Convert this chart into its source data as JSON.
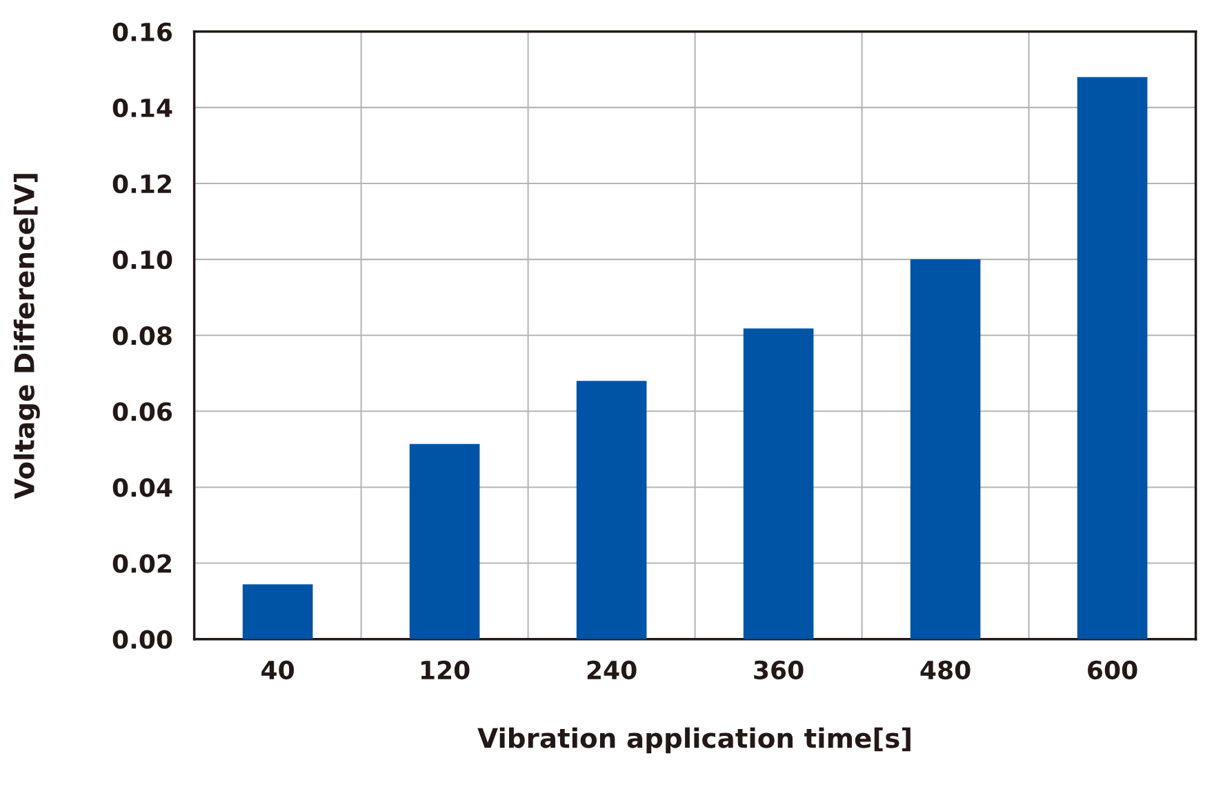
{
  "chart_data": {
    "type": "bar",
    "xlabel": "Vibration application time[s]",
    "ylabel": "Voltage Difference[V]",
    "categories": [
      "40",
      "120",
      "240",
      "360",
      "480",
      "600"
    ],
    "values": [
      0.0144,
      0.0514,
      0.068,
      0.0818,
      0.1,
      0.148
    ],
    "color": "#0054a6",
    "ylim": [
      0,
      0.16
    ],
    "yticks": [
      {
        "value": 0,
        "label": "0.00"
      },
      {
        "value": 0.02,
        "label": "0.02"
      },
      {
        "value": 0.04,
        "label": "0.04"
      },
      {
        "value": 0.06,
        "label": "0.06"
      },
      {
        "value": 0.08,
        "label": "0.08"
      },
      {
        "value": 0.1,
        "label": "0.10"
      },
      {
        "value": 0.12,
        "label": "0.12"
      },
      {
        "value": 0.14,
        "label": "0.14"
      },
      {
        "value": 0.16,
        "label": "0.16"
      }
    ],
    "grid": true
  }
}
